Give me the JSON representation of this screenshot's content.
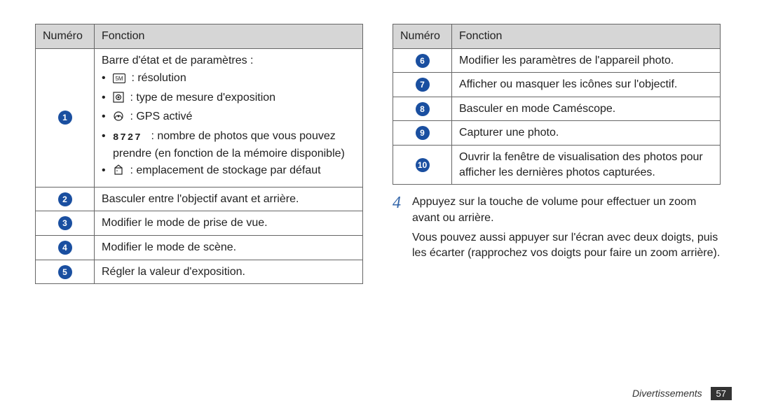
{
  "tableLeft": {
    "headers": {
      "num": "Numéro",
      "func": "Fonction"
    },
    "rows": [
      {
        "num": "1",
        "lead": "Barre d'état et de paramètres :",
        "bullets": [
          {
            "icon": "res",
            "text": " : résolution"
          },
          {
            "icon": "expo",
            "text": " : type de mesure d'exposition"
          },
          {
            "icon": "gps",
            "text": " : GPS activé"
          },
          {
            "icon": "count",
            "text": " : nombre de photos que vous pouvez prendre (en fonction de la mémoire disponible)"
          },
          {
            "icon": "store",
            "text": " : emplacement de stockage par défaut"
          }
        ]
      },
      {
        "num": "2",
        "text": "Basculer entre l'objectif avant et arrière."
      },
      {
        "num": "3",
        "text": "Modifier le mode de prise de vue."
      },
      {
        "num": "4",
        "text": "Modifier le mode de scène."
      },
      {
        "num": "5",
        "text": "Régler la valeur d'exposition."
      }
    ]
  },
  "tableRight": {
    "headers": {
      "num": "Numéro",
      "func": "Fonction"
    },
    "rows": [
      {
        "num": "6",
        "text": "Modifier les paramètres de l'appareil photo."
      },
      {
        "num": "7",
        "text": "Afficher ou masquer les icônes sur l'objectif."
      },
      {
        "num": "8",
        "text": "Basculer en mode Caméscope."
      },
      {
        "num": "9",
        "text": "Capturer une photo."
      },
      {
        "num": "10",
        "text": "Ouvrir la fenêtre de visualisation des photos pour afficher les dernières photos capturées."
      }
    ]
  },
  "step": {
    "num": "4",
    "p1": "Appuyez sur la touche de volume pour effectuer un zoom avant ou arrière.",
    "p2": "Vous pouvez aussi appuyer sur l'écran avec deux doigts, puis les écarter (rapprochez vos doigts pour faire un zoom arrière)."
  },
  "footer": {
    "section": "Divertissements",
    "page": "57"
  },
  "icons": {
    "res": "<svg width='18' height='14' viewBox='0 0 18 14'><rect x='0.5' y='0.5' width='17' height='13' rx='1.5' fill='none' stroke='#222' stroke-width='1.2'/><text x='9' y='10' text-anchor='middle' font-size='8' font-family='Arial' fill='#222'>5M</text></svg>",
    "expo": "<svg width='16' height='16' viewBox='0 0 16 16'><rect x='1' y='1' width='14' height='14' fill='none' stroke='#222' stroke-width='1.2'/><circle cx='8' cy='8' r='3.5' fill='none' stroke='#222' stroke-width='1.2'/><circle cx='8' cy='8' r='1.5' fill='#222'/></svg>",
    "gps": "<svg width='16' height='16' viewBox='0 0 16 16'><circle cx='8' cy='8' r='6' fill='none' stroke='#222' stroke-width='1.2'/><circle cx='8' cy='8' r='1.5' fill='#222'/><path d='M3 12 C3 9,5 7,8 7 M13 12 C13 9,11 7,8 7' fill='none' stroke='#222' stroke-width='1'/></svg>",
    "count": "<svg width='46' height='14' viewBox='0 0 46 14'><text x='0' y='12' font-family=\"Courier New, monospace\" font-weight='bold' font-size='14' fill='#222' letter-spacing='2'>8727</text></svg>",
    "store": "<svg width='16' height='16' viewBox='0 0 16 16'><rect x='3' y='5' width='10' height='9' fill='none' stroke='#222' stroke-width='1.2'/><path d='M3 5 L8 1 L13 5' fill='none' stroke='#222' stroke-width='1.2'/><circle cx='6' cy='9' r='0.8' fill='#222'/></svg>"
  },
  "colors": {
    "headerBg": "#d6d6d6",
    "border": "#666666",
    "circleBg": "#1a4fa0",
    "stepNum": "#3366aa",
    "pageBadgeBg": "#333333"
  }
}
